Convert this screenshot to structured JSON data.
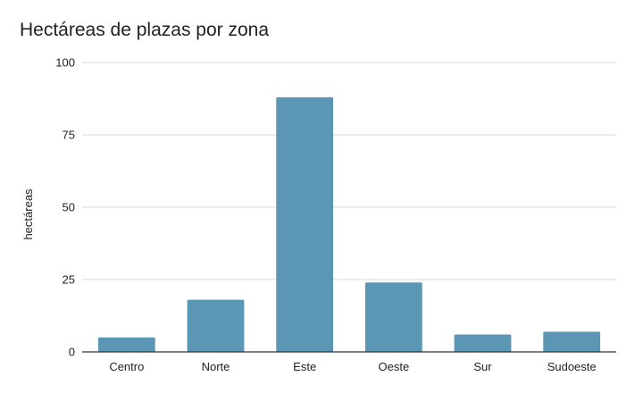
{
  "chart_data": {
    "type": "bar",
    "title": "Hectáreas de plazas por zona",
    "xlabel": "",
    "ylabel": "hectáreas",
    "categories": [
      "Centro",
      "Norte",
      "Este",
      "Oeste",
      "Sur",
      "Sudoeste"
    ],
    "values": [
      5,
      18,
      88,
      24,
      6,
      7
    ],
    "ylim": [
      0,
      100
    ],
    "yticks": [
      "0",
      "25",
      "50",
      "75",
      "100"
    ],
    "grid": true,
    "legend": "none",
    "colors": {
      "bar": "#5b97b5",
      "grid": "#d9d9d9",
      "axis": "#333333"
    }
  }
}
